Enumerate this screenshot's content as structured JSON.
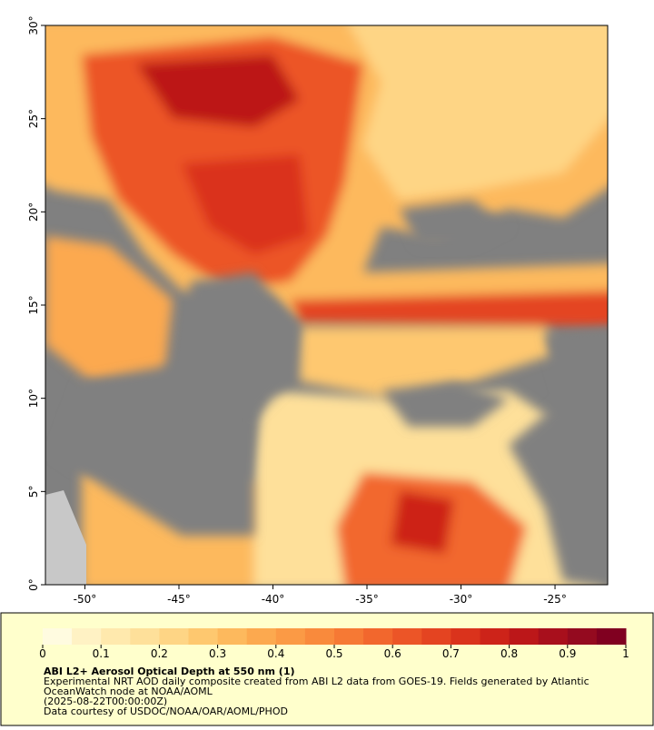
{
  "map": {
    "lonlim": [
      -52.1,
      -22.2
    ],
    "latlim": [
      0,
      30
    ],
    "lon_ticks": [
      {
        "value": -50,
        "label": "-50°"
      },
      {
        "value": -45,
        "label": "-45°"
      },
      {
        "value": -40,
        "label": "-40°"
      },
      {
        "value": -35,
        "label": "-35°"
      },
      {
        "value": -30,
        "label": "-30°"
      },
      {
        "value": -25,
        "label": "-25°"
      }
    ],
    "lat_ticks": [
      {
        "value": 0,
        "label": "0°"
      },
      {
        "value": 5,
        "label": "5°"
      },
      {
        "value": 10,
        "label": "10°"
      },
      {
        "value": 15,
        "label": "15°"
      },
      {
        "value": 20,
        "label": "20°"
      },
      {
        "value": 25,
        "label": "25°"
      },
      {
        "value": 30,
        "label": "30°"
      }
    ]
  },
  "colorbar": {
    "lim": [
      0,
      1
    ],
    "ticks": [
      0,
      0.1,
      0.2,
      0.3,
      0.4,
      0.5,
      0.6,
      0.7,
      0.8,
      0.9,
      1
    ],
    "colors": [
      "#fffbe0",
      "#fff2c4",
      "#ffe9ad",
      "#fee09a",
      "#fed585",
      "#fec86f",
      "#fdb95d",
      "#fca94f",
      "#fb9a45",
      "#f98a3c",
      "#f67934",
      "#f2672d",
      "#ec5527",
      "#e44421",
      "#da331c",
      "#cd2319",
      "#bc1719",
      "#a80f1c",
      "#940a1f",
      "#800020"
    ]
  },
  "caption": {
    "title": "ABI L2+ Aerosol Optical Depth at 550 nm (1)",
    "lines": [
      "Experimental NRT AOD daily composite created from ABI L2 data from GOES-19. Fields generated by Atlantic",
      "OceanWatch node at NOAA/AOML",
      "(2025-08-22T00:00:00Z)",
      "Data courtesy of USDOC/NOAA/OAR/AOML/PHOD"
    ]
  }
}
